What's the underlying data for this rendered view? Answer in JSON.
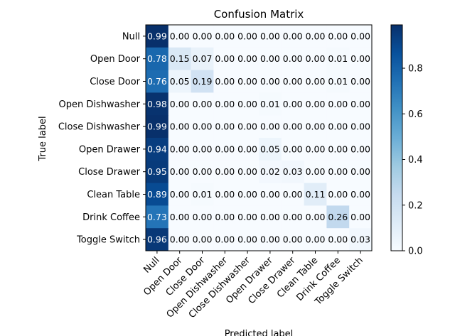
{
  "chart_data": {
    "type": "heatmap",
    "title": "Confusion Matrix",
    "xlabel": "Predicted label",
    "ylabel": "True label",
    "labels": [
      "Null",
      "Open Door",
      "Close Door",
      "Open Dishwasher",
      "Close Dishwasher",
      "Open Drawer",
      "Close Drawer",
      "Clean Table",
      "Drink Coffee",
      "Toggle Switch"
    ],
    "matrix": [
      [
        0.99,
        0.0,
        0.0,
        0.0,
        0.0,
        0.0,
        0.0,
        0.0,
        0.0,
        0.0
      ],
      [
        0.78,
        0.15,
        0.07,
        0.0,
        0.0,
        0.0,
        0.0,
        0.0,
        0.01,
        0.0
      ],
      [
        0.76,
        0.05,
        0.19,
        0.0,
        0.0,
        0.0,
        0.0,
        0.0,
        0.01,
        0.0
      ],
      [
        0.98,
        0.0,
        0.0,
        0.0,
        0.0,
        0.01,
        0.0,
        0.0,
        0.0,
        0.0
      ],
      [
        0.99,
        0.0,
        0.0,
        0.0,
        0.0,
        0.0,
        0.0,
        0.0,
        0.0,
        0.0
      ],
      [
        0.94,
        0.0,
        0.0,
        0.0,
        0.0,
        0.05,
        0.0,
        0.0,
        0.0,
        0.0
      ],
      [
        0.95,
        0.0,
        0.0,
        0.0,
        0.0,
        0.02,
        0.03,
        0.0,
        0.0,
        0.0
      ],
      [
        0.89,
        0.0,
        0.01,
        0.0,
        0.0,
        0.0,
        0.0,
        0.11,
        0.0,
        0.0
      ],
      [
        0.73,
        0.0,
        0.0,
        0.0,
        0.0,
        0.0,
        0.0,
        0.0,
        0.26,
        0.0
      ],
      [
        0.96,
        0.0,
        0.0,
        0.0,
        0.0,
        0.0,
        0.0,
        0.0,
        0.0,
        0.03
      ]
    ],
    "vmin": 0.0,
    "vmax": 0.99,
    "colormap": "Blues",
    "colorbar_ticks": [
      "0.0",
      "0.2",
      "0.4",
      "0.6",
      "0.8"
    ],
    "colorbar_tick_values": [
      0.0,
      0.2,
      0.4,
      0.6,
      0.8
    ],
    "text_color_dark": "#000000",
    "text_color_light": "#ffffff"
  }
}
